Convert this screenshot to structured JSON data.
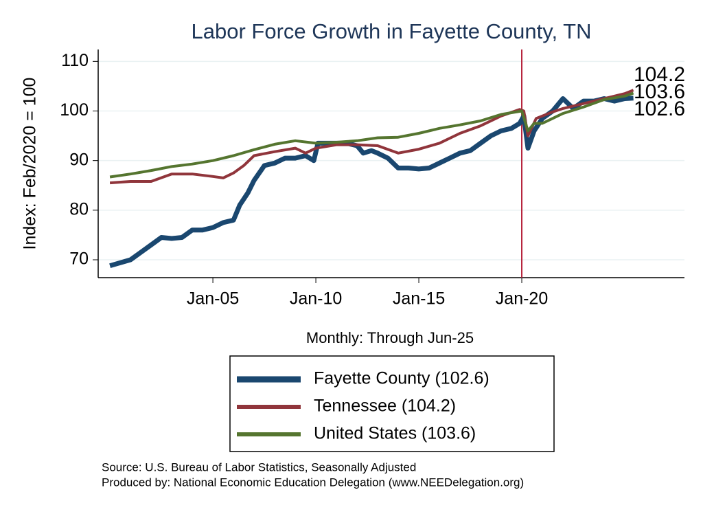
{
  "chart_data": {
    "type": "line",
    "title": "Labor Force Growth in Fayette  County, TN",
    "x_label": "Monthly: Through Jun-25",
    "y_label": "Index: Feb/2020 = 100",
    "xlim": [
      1999.43,
      2027.9
    ],
    "ylim": [
      66.4,
      112.4
    ],
    "xticks": [
      {
        "value": 2005,
        "label": "Jan-05"
      },
      {
        "value": 2010,
        "label": "Jan-10"
      },
      {
        "value": 2015,
        "label": "Jan-15"
      },
      {
        "value": 2020,
        "label": "Jan-20"
      }
    ],
    "yticks": [
      70,
      80,
      90,
      100,
      110
    ],
    "grid": true,
    "vline": {
      "x": 2020.0,
      "color": "#b5213a"
    },
    "series": [
      {
        "name": "Fayette  County (102.6)",
        "color": "#1a476f",
        "width": 7,
        "x": [
          2000,
          2001,
          2001.5,
          2002,
          2002.5,
          2003,
          2003.5,
          2004,
          2004.5,
          2005,
          2005.5,
          2006,
          2006.3,
          2006.7,
          2007,
          2007.5,
          2008,
          2008.5,
          2009,
          2009.5,
          2009.9,
          2010.1,
          2010.5,
          2011,
          2011.5,
          2012,
          2012.3,
          2012.7,
          2013,
          2013.5,
          2014,
          2014.5,
          2015,
          2015.5,
          2016,
          2016.5,
          2017,
          2017.5,
          2018,
          2018.5,
          2019,
          2019.5,
          2019.9,
          2020.1,
          2020.3,
          2020.6,
          2021,
          2021.5,
          2022,
          2022.5,
          2023,
          2023.5,
          2024,
          2024.5,
          2025,
          2025.42
        ],
        "values": [
          68.8,
          70,
          71.5,
          73,
          74.5,
          74.3,
          74.5,
          76,
          76,
          76.5,
          77.5,
          78,
          81,
          83.5,
          86,
          89,
          89.5,
          90.5,
          90.5,
          91,
          90,
          93.5,
          93.5,
          93.5,
          93.5,
          93,
          91.5,
          92,
          91.5,
          90.5,
          88.5,
          88.5,
          88.3,
          88.5,
          89.5,
          90.5,
          91.5,
          92,
          93.5,
          95,
          96,
          96.5,
          97.5,
          99,
          92.5,
          96,
          98.5,
          100,
          102.5,
          100.5,
          102,
          102,
          102.5,
          102,
          102.5,
          102.6
        ]
      },
      {
        "name": "Tennessee (104.2)",
        "color": "#90353b",
        "width": 4,
        "x": [
          2000,
          2001,
          2002,
          2003,
          2004,
          2005,
          2005.5,
          2006,
          2006.5,
          2007,
          2008,
          2009,
          2009.5,
          2010,
          2011,
          2012,
          2013,
          2014,
          2015,
          2016,
          2017,
          2018,
          2019,
          2019.9,
          2020.1,
          2020.3,
          2020.7,
          2021.5,
          2022,
          2022.5,
          2023,
          2024,
          2025,
          2025.42
        ],
        "values": [
          85.5,
          85.8,
          85.8,
          87.3,
          87.3,
          86.8,
          86.5,
          87.5,
          89,
          91,
          91.8,
          92.5,
          91.5,
          92.5,
          93.2,
          93.2,
          93,
          91.5,
          92.3,
          93.5,
          95.5,
          97,
          99,
          100.3,
          100,
          95,
          98.5,
          99.8,
          100.5,
          101,
          101.5,
          102.5,
          103.5,
          104.2
        ]
      },
      {
        "name": "United States (103.6)",
        "color": "#55752f",
        "width": 4,
        "x": [
          2000,
          2001,
          2002,
          2003,
          2004,
          2005,
          2006,
          2007,
          2008,
          2009,
          2010,
          2011,
          2012,
          2013,
          2014,
          2015,
          2016,
          2017,
          2018,
          2019,
          2020,
          2020.3,
          2020.6,
          2021,
          2021.5,
          2022,
          2023,
          2024,
          2025,
          2025.42
        ],
        "values": [
          86.7,
          87.3,
          88,
          88.8,
          89.3,
          90,
          91,
          92.2,
          93.3,
          94,
          93.5,
          93.7,
          94,
          94.6,
          94.7,
          95.5,
          96.5,
          97.2,
          98,
          99.3,
          100,
          96,
          97.5,
          97.5,
          98.5,
          99.5,
          100.8,
          102.3,
          103,
          103.6
        ]
      }
    ],
    "notes": [
      "Source: U.S. Bureau of Labor Statistics, Seasonally Adjusted",
      "Produced by: National Economic Education Delegation (www.NEEDelegation.org)"
    ]
  }
}
